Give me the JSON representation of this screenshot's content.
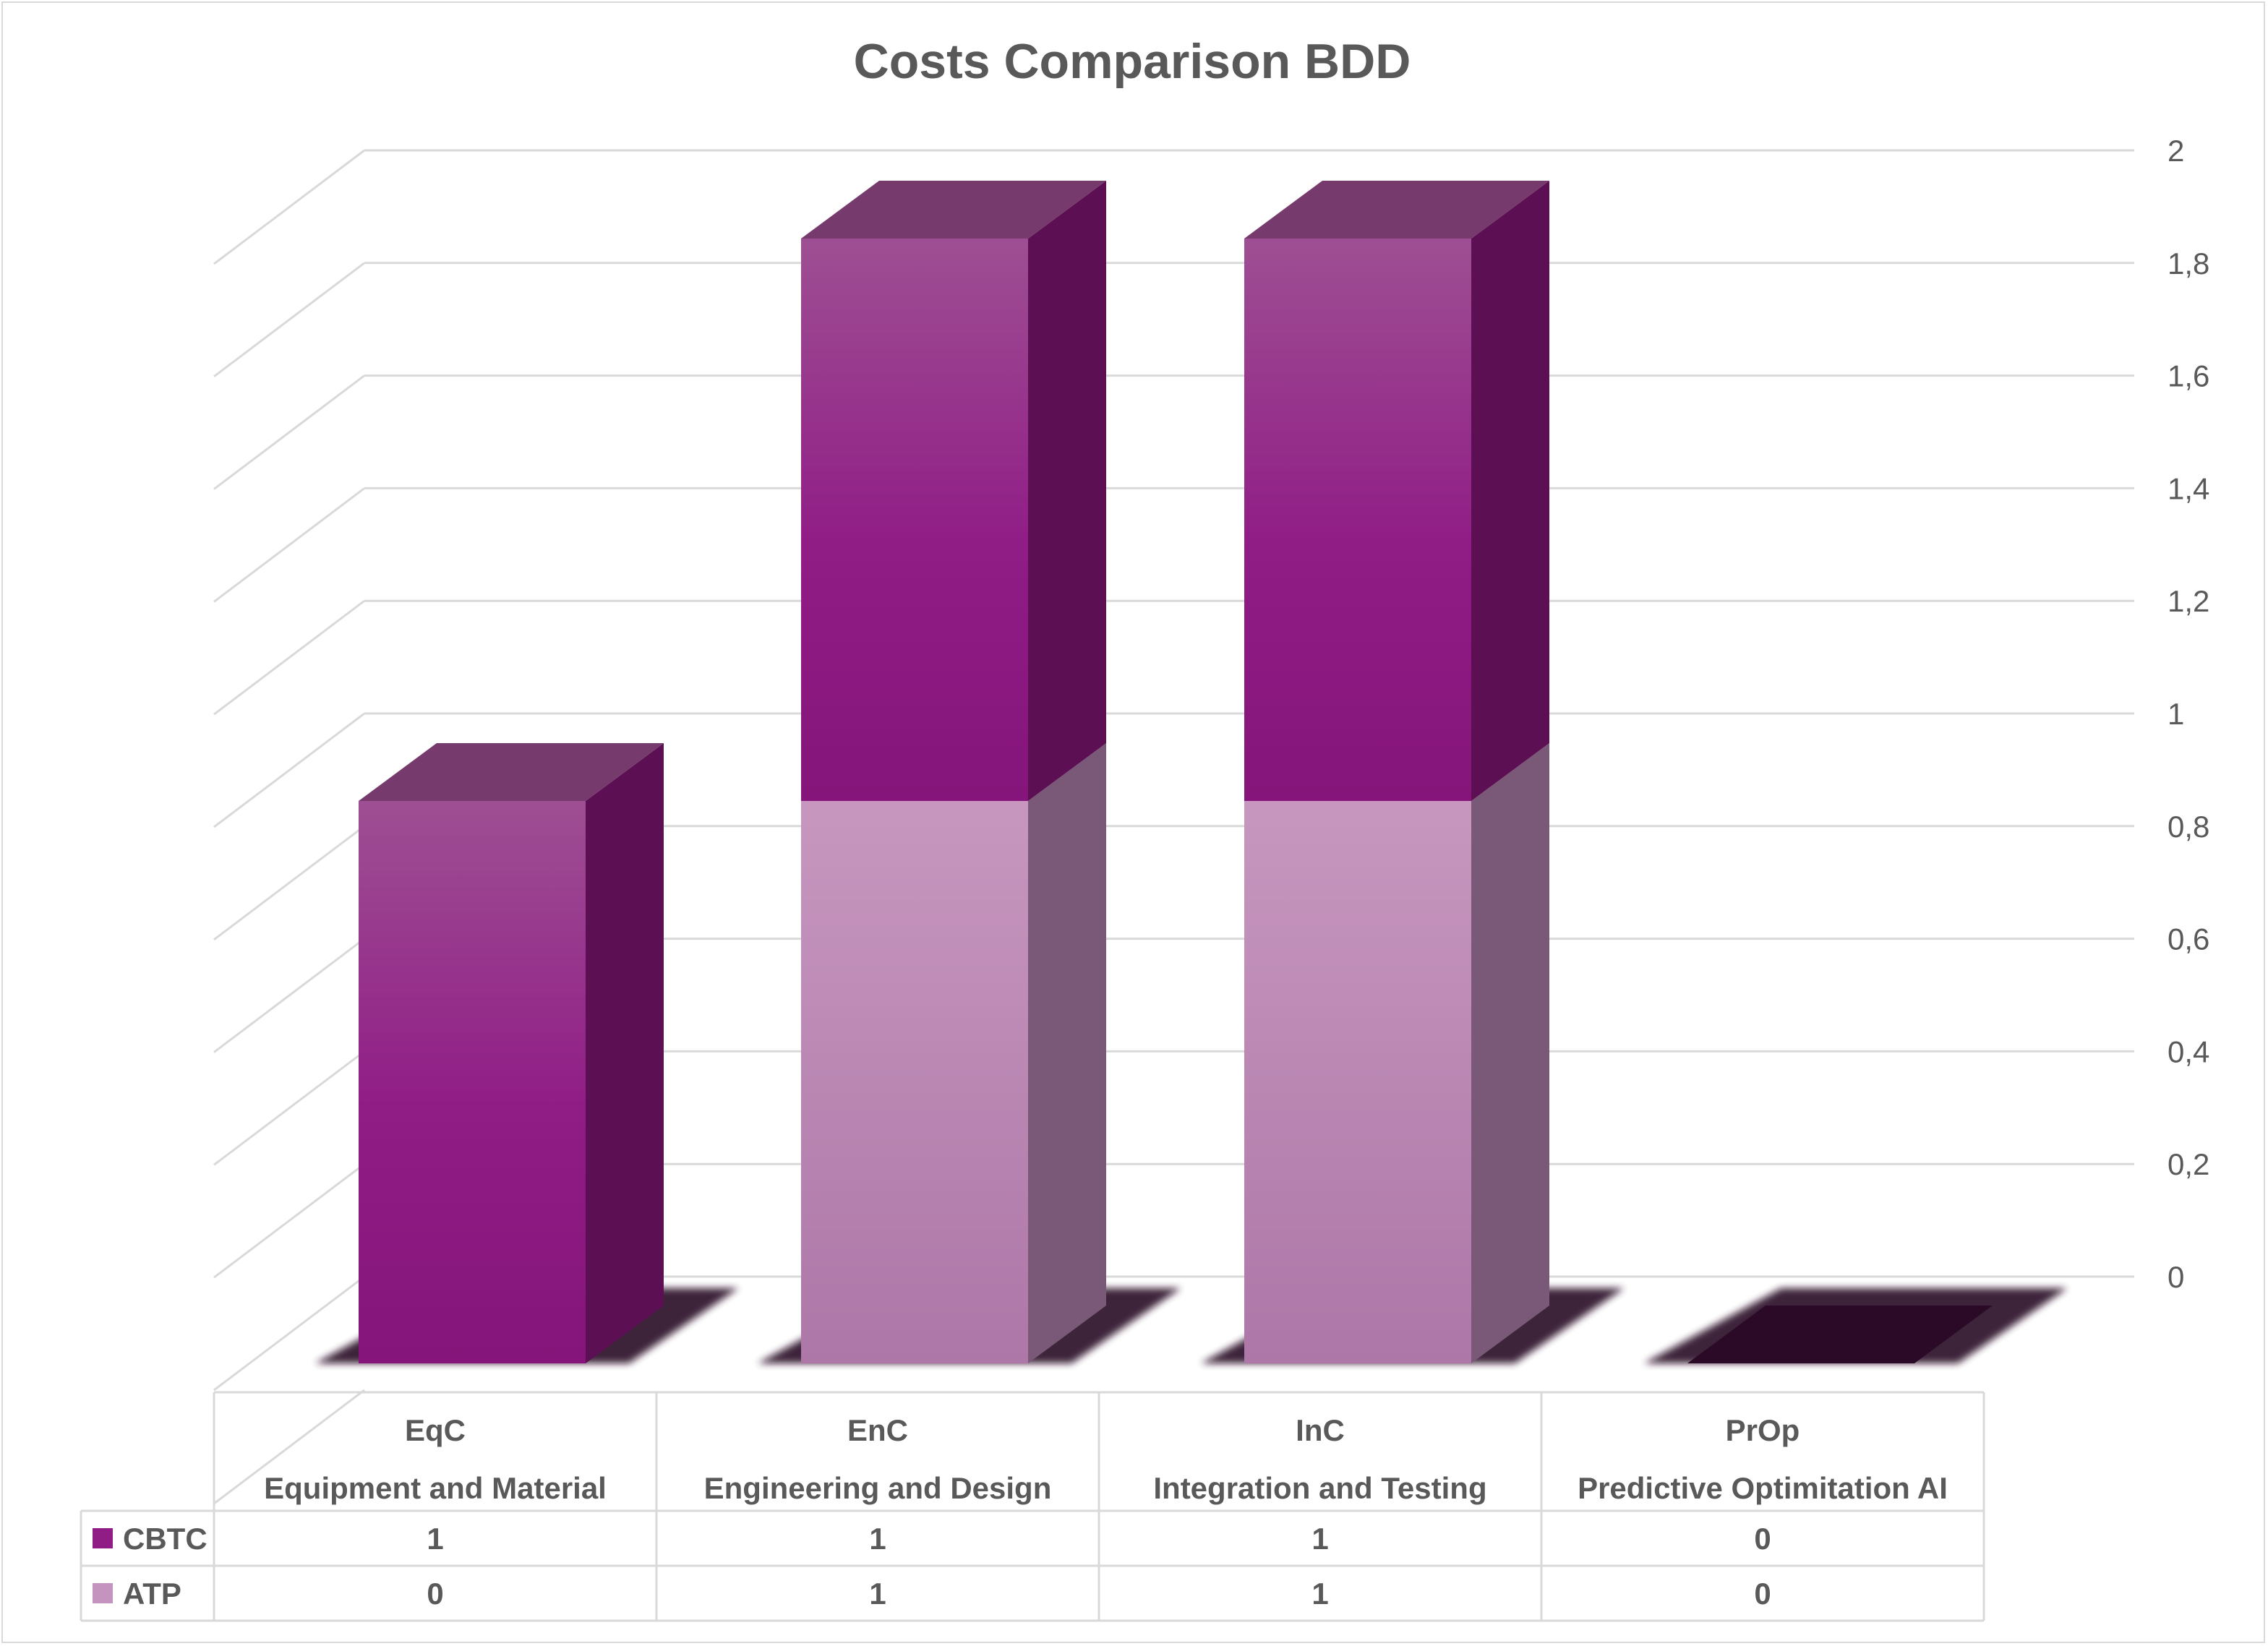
{
  "chart_data": {
    "type": "bar",
    "stacked": true,
    "three_d": true,
    "title": "Costs Comparison BDD",
    "categories": [
      {
        "code": "EqC",
        "name": "Equipment and Material"
      },
      {
        "code": "EnC",
        "name": "Engineering and Design"
      },
      {
        "code": "InC",
        "name": "Integration and Testing"
      },
      {
        "code": "PrOp",
        "name": "Predictive Optimitation AI"
      }
    ],
    "series": [
      {
        "name": "ATP",
        "values": [
          0,
          1,
          1,
          0
        ],
        "color": "#c594be",
        "display": [
          "0",
          "1",
          "1",
          "0"
        ]
      },
      {
        "name": "CBTC",
        "values": [
          1,
          1,
          1,
          0
        ],
        "color": "#901c86",
        "display": [
          "1",
          "1",
          "1",
          "0"
        ]
      }
    ],
    "ylim": [
      0,
      2
    ],
    "yticks": [
      "0",
      "0,2",
      "0,4",
      "0,6",
      "0,8",
      "1",
      "1,2",
      "1,4",
      "1,6",
      "1,8",
      "2"
    ],
    "grid": true,
    "data_table": true,
    "legend_position": "data-table",
    "colors": {
      "text": "#595959",
      "grid": "#d9d9d9",
      "shadow": "#2a0a27"
    }
  }
}
